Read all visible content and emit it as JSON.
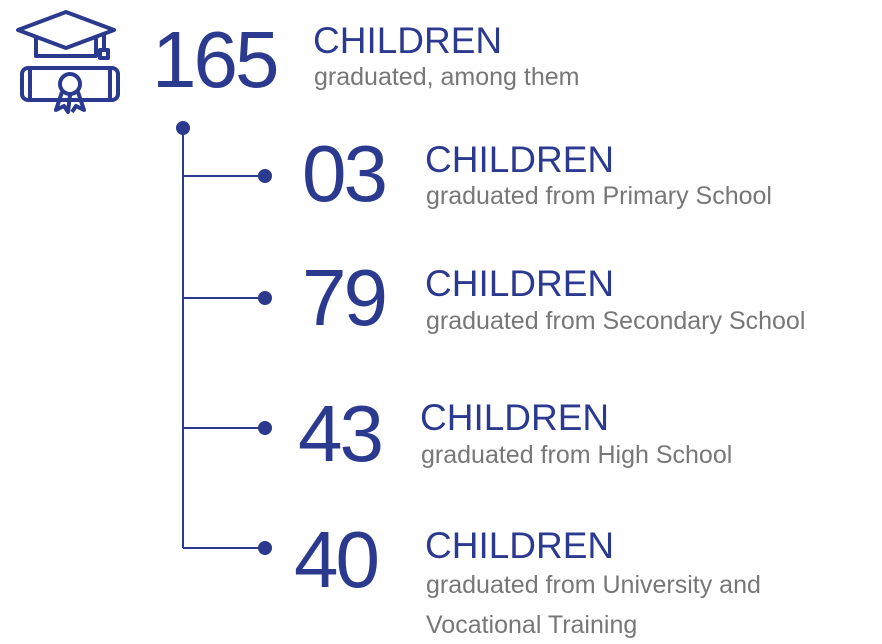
{
  "header": {
    "number": "165",
    "label": "CHILDREN",
    "subtitle": "graduated, among them"
  },
  "items": [
    {
      "number": "03",
      "label": "CHILDREN",
      "subtitle_lines": [
        "graduated from Primary School"
      ]
    },
    {
      "number": "79",
      "label": "CHILDREN",
      "subtitle_lines": [
        "graduated from Secondary School"
      ]
    },
    {
      "number": "43",
      "label": "CHILDREN",
      "subtitle_lines": [
        "graduated from High School"
      ]
    },
    {
      "number": "40",
      "label": "CHILDREN",
      "subtitle_lines": [
        "graduated from University and",
        "Vocational Training"
      ]
    }
  ]
}
